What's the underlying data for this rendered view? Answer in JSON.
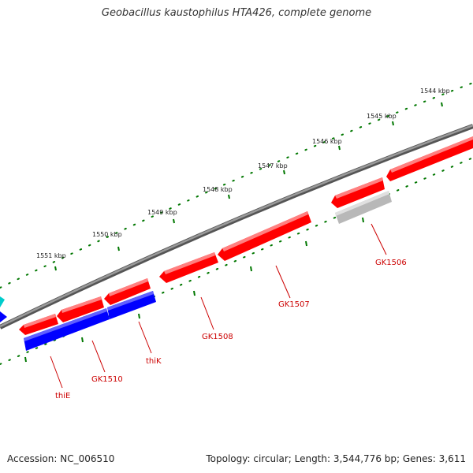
{
  "title": "Geobacillus kaustophilus HTA426, complete genome",
  "footer": {
    "accession": "Accession: NC_006510",
    "summary": "Topology: circular; Length: 3,544,776 bp; Genes: 3,611"
  },
  "scale_labels": [
    "1544 kbp",
    "1545 kbp",
    "1546 kbp",
    "1547 kbp",
    "1548 kbp",
    "1549 kbp",
    "1550 kbp",
    "1551 kbp"
  ],
  "genes": [
    {
      "label": "GK1506",
      "color": "#c0c0c0",
      "strand": "reverse"
    },
    {
      "label": "GK1507",
      "color": "#ff0000",
      "strand": "reverse"
    },
    {
      "label": "GK1508",
      "color": "#ff0000",
      "strand": "reverse"
    },
    {
      "label": "GK1510",
      "color": "#0000ff",
      "strand": "forward"
    },
    {
      "label": "thiK",
      "color": "#0000ff",
      "strand": "forward"
    },
    {
      "label": "thiE",
      "color": "#ff0000",
      "strand": "reverse"
    }
  ],
  "colors": {
    "backbone": "#808080",
    "ticks": "#007700",
    "forward_gene": "#0000ff",
    "reverse_gene": "#ff0000",
    "pseudo_gene": "#c0c0c0",
    "partial_cyan": "#00cccc",
    "label": "#cc0000"
  }
}
